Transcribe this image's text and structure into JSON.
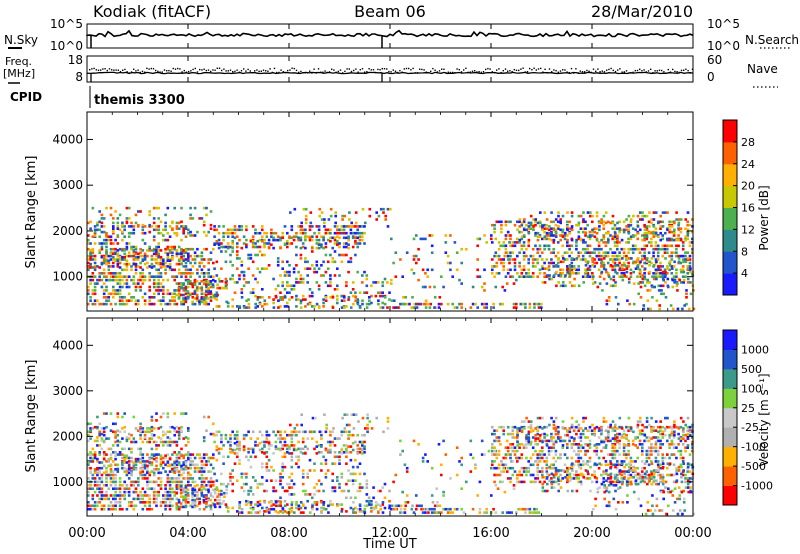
{
  "header": {
    "station": "Kodiak (fitACF)",
    "beam": "Beam 06",
    "date": "28/Mar/2010",
    "cpid": "themis 3300",
    "cpid_label": "CPID"
  },
  "noise_panel": {
    "left_label": "N.Sky",
    "right_label": "N.Search",
    "left_ticks": [
      "10^5",
      "10^0"
    ],
    "right_ticks": [
      "10^5",
      "10^0"
    ]
  },
  "freq_panel": {
    "left_label_1": "Freq.",
    "left_label_2": "[MHz]",
    "right_label": "Nave",
    "left_ticks": [
      "18",
      "8"
    ],
    "right_ticks": [
      "60",
      "0"
    ]
  },
  "colors": {
    "power_scale": [
      "#1a1aff",
      "#2255cc",
      "#2e8b8b",
      "#4caf50",
      "#c8c800",
      "#ffb000",
      "#ff6000",
      "#ff0000"
    ],
    "velocity_scale": [
      "#ff0000",
      "#ff6000",
      "#ffb000",
      "#b0b0b0",
      "#c8c8c8",
      "#7cd13c",
      "#3c9a8a",
      "#2255cc",
      "#1a1aff"
    ]
  },
  "chart_data": [
    {
      "type": "heatmap",
      "name": "power",
      "ylabel": "Slant Range [km]",
      "yticks": [
        "1000",
        "2000",
        "3000",
        "4000"
      ],
      "ylim": [
        250,
        4600
      ],
      "colorbar_label": "Power [dB]",
      "colorbar_ticks": [
        "4",
        "8",
        "12",
        "16",
        "20",
        "24",
        "28"
      ],
      "colorbar_range": [
        0,
        30
      ]
    },
    {
      "type": "heatmap",
      "name": "velocity",
      "ylabel": "Slant Range [km]",
      "yticks": [
        "1000",
        "2000",
        "3000",
        "4000"
      ],
      "ylim": [
        250,
        4600
      ],
      "colorbar_label": "Velocity [m s⁻¹]",
      "colorbar_ticks": [
        "1000",
        "500",
        "100",
        "25",
        "-25",
        "-100",
        "-500",
        "-1000"
      ]
    }
  ],
  "xaxis": {
    "label": "Time UT",
    "ticks": [
      "00:00",
      "04:00",
      "08:00",
      "12:00",
      "16:00",
      "20:00",
      "00:00"
    ]
  }
}
